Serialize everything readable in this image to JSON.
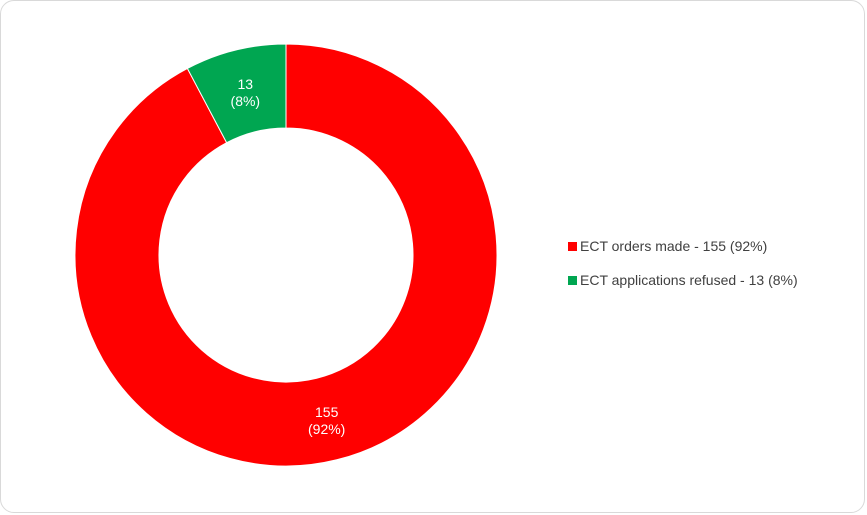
{
  "chart_data": {
    "type": "pie",
    "variant": "donut",
    "title": "",
    "legend_position": "right",
    "slices": [
      {
        "legend_label": "ECT orders made - 155 (92%)",
        "value": 155,
        "percent": 92,
        "label_value": "155",
        "label_percent": "(92%)",
        "color": "#ff0000"
      },
      {
        "legend_label": "ECT applications refused - 13 (8%)",
        "value": 13,
        "percent": 8,
        "label_value": "13",
        "label_percent": "(8%)",
        "color": "#00a651"
      }
    ]
  }
}
